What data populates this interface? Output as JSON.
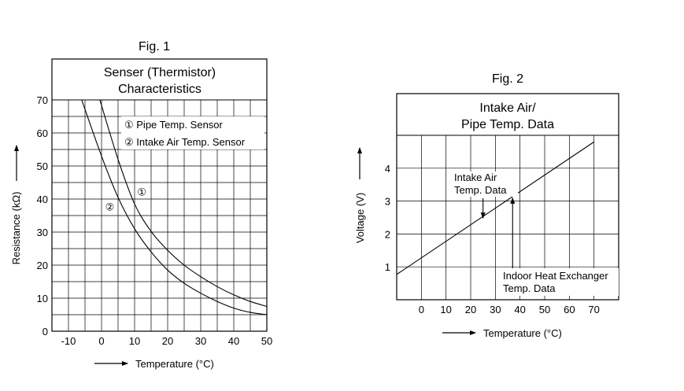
{
  "chart_data": [
    {
      "type": "line",
      "figure_label": "Fig. 1",
      "title": [
        "Senser (Thermistor)",
        "Characteristics"
      ],
      "xlabel": "Temperature (°C)",
      "ylabel": "Resistance (kΩ)",
      "xlim": [
        -15,
        50
      ],
      "ylim": [
        0,
        70
      ],
      "xticks": [
        -10,
        0,
        10,
        20,
        30,
        40,
        50
      ],
      "yticks": [
        0,
        10,
        20,
        30,
        40,
        50,
        60,
        70
      ],
      "grid": true,
      "legend": [
        "① Pipe Temp. Sensor",
        "② Intake Air Temp. Sensor"
      ],
      "series": [
        {
          "name": "① Pipe Temp. Sensor",
          "marker": "①",
          "x": [
            -0.5,
            5,
            10,
            15,
            20,
            25,
            30,
            35,
            40,
            45,
            50
          ],
          "y": [
            70,
            52,
            38.5,
            30.2,
            24.5,
            20,
            16.5,
            13.5,
            11,
            9,
            7.5
          ]
        },
        {
          "name": "② Intake Air Temp. Sensor",
          "marker": "②",
          "x": [
            -6,
            0,
            5,
            10,
            15,
            20,
            25,
            30,
            35,
            40,
            45,
            50
          ],
          "y": [
            70,
            53,
            40.5,
            31,
            24,
            18.5,
            14.5,
            11.5,
            9,
            7,
            5.7,
            5
          ]
        }
      ],
      "marker_positions": [
        {
          "symbol": "①",
          "x": 12.2,
          "y": 42
        },
        {
          "symbol": "②",
          "x": 2.5,
          "y": 37.5
        }
      ]
    },
    {
      "type": "line",
      "figure_label": "Fig. 2",
      "title": [
        "Intake Air/",
        "Pipe Temp. Data"
      ],
      "xlabel": "Temperature (°C)",
      "ylabel": "Voltage (V)",
      "xlim": [
        -10,
        80
      ],
      "ylim": [
        0,
        5
      ],
      "xticks": [
        0,
        10,
        20,
        30,
        40,
        50,
        60,
        70
      ],
      "yticks": [
        1,
        2,
        3,
        4
      ],
      "grid": true,
      "series": [
        {
          "x": [
            -10,
            70
          ],
          "y": [
            0.77,
            4.8
          ]
        }
      ],
      "annotations": [
        {
          "text": [
            "Intake Air",
            "Temp. Data"
          ],
          "arrow": "down",
          "x": 25
        },
        {
          "text": [
            "Indoor Heat Exchanger",
            "Temp. Data"
          ],
          "arrow": "up",
          "x": 37
        }
      ]
    }
  ]
}
